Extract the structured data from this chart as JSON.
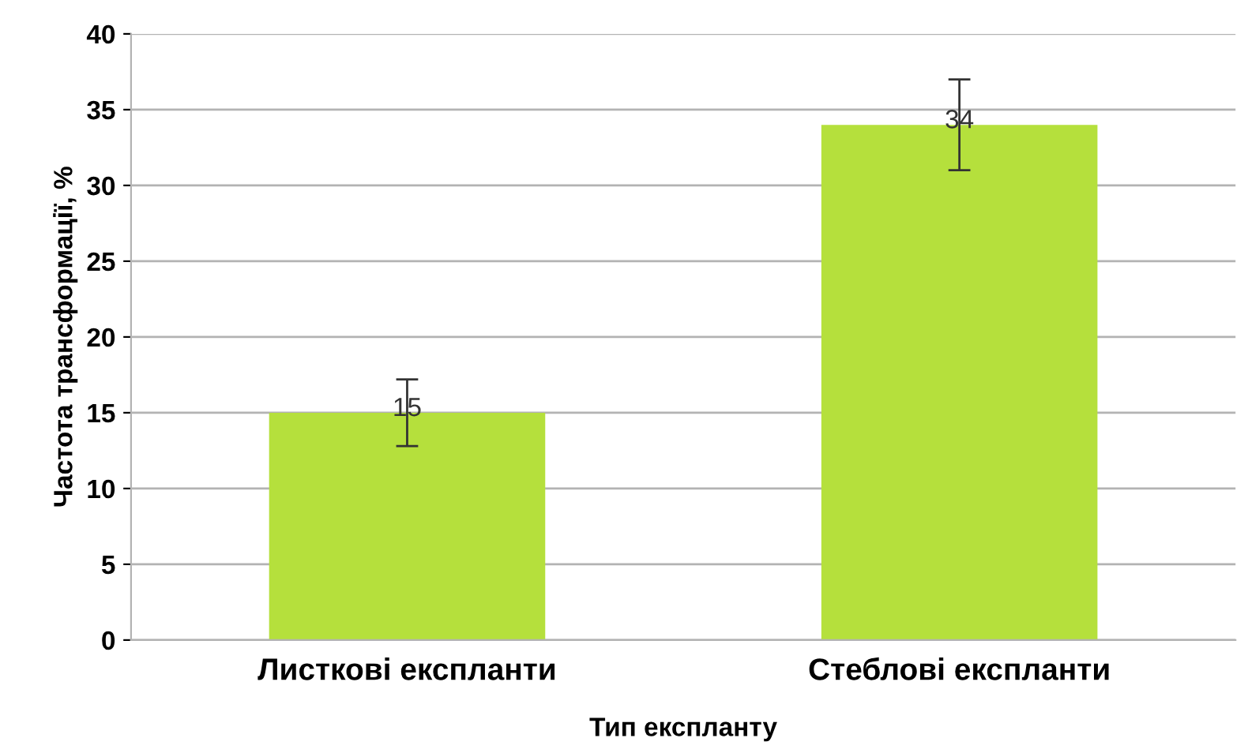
{
  "chart_data": {
    "type": "bar",
    "xlabel": "Тип експланту",
    "ylabel": "Частота трансформації, %",
    "categories": [
      "Листкові експланти",
      "Стеблові експланти"
    ],
    "values": [
      15,
      34
    ],
    "errors": [
      2.2,
      3
    ],
    "color": "#b5e03c",
    "ylim": [
      0,
      40
    ],
    "yticks": [
      0,
      5,
      10,
      15,
      20,
      25,
      30,
      35,
      40
    ],
    "grid": "y",
    "data_labels": true
  }
}
